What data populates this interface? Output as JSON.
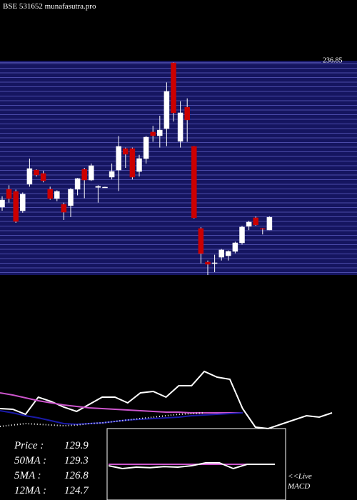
{
  "chart_data": [
    {
      "type": "candlestick",
      "title": "BSE 531652 munafasutra.pro",
      "ylim": [
        90,
        238
      ],
      "yticks": [
        236.85
      ],
      "up_color": "#ffffff",
      "down_color": "#cc0000",
      "panel_color": "#151560",
      "grid_color": "#4a4aa8",
      "open": [
        136.9,
        149.2,
        147.7,
        134.4,
        152.7,
        162.5,
        160.1,
        149.2,
        142.8,
        138.8,
        137.9,
        149.2,
        163.0,
        155.6,
        150.5,
        150.7,
        157.6,
        162.5,
        177.3,
        177.3,
        161.5,
        170.4,
        188.7,
        186.2,
        191.1,
        236.5,
        182.3,
        205.9,
        178.8,
        122.1,
        98.9,
        98.4,
        102.3,
        103.3,
        106.3,
        112.2,
        123.6,
        129.5,
        122.1,
        121.1
      ],
      "high": [
        144.3,
        152,
        149,
        147,
        170.4,
        163,
        162,
        151,
        148.5,
        140,
        150,
        157,
        164,
        167,
        152,
        151,
        167,
        186,
        178,
        178,
        173,
        186,
        193,
        200,
        223,
        236.85,
        210,
        212,
        179,
        123,
        100,
        104,
        108,
        107,
        113,
        124,
        127.5,
        130.5,
        122.5,
        130.5
      ],
      "low": [
        134.4,
        140,
        126,
        133,
        151,
        158,
        154,
        142,
        141,
        128,
        130,
        145,
        143,
        155,
        140,
        150.4,
        156,
        148,
        164,
        156,
        158,
        167,
        182,
        178,
        179,
        196,
        178,
        182,
        129,
        98,
        90,
        92,
        100,
        100,
        105,
        111,
        121,
        124,
        118,
        121
      ],
      "close": [
        141.8,
        142.8,
        127.0,
        145.8,
        163.5,
        159.1,
        155.1,
        142.8,
        147.7,
        133.4,
        149.2,
        156.6,
        155.6,
        165.5,
        151.2,
        150.7,
        161.5,
        178.8,
        173.4,
        157.6,
        170.4,
        185.2,
        186.2,
        190.1,
        216.8,
        202.0,
        202.0,
        197.1,
        129.5,
        104.8,
        97.4,
        98.4,
        107.3,
        106.3,
        112.2,
        123.1,
        126.5,
        124.6,
        121.6,
        129.9
      ],
      "stats": [
        {
          "label": "Price  :",
          "value": 129.9
        },
        {
          "label": "50MA :",
          "value": 129.3
        },
        {
          "label": "5MA :",
          "value": 126.8
        },
        {
          "label": "12MA :",
          "value": 124.7
        }
      ]
    },
    {
      "type": "line",
      "ylim": [
        0,
        100
      ],
      "series": [
        {
          "color": "#ffffff",
          "style": "solid",
          "values": [
            28,
            27,
            20,
            44,
            38,
            30,
            24,
            34,
            44,
            44,
            36,
            50,
            52,
            44,
            60,
            60,
            80,
            72,
            69,
            28,
            2,
            0,
            6,
            12,
            18,
            16,
            22
          ]
        },
        {
          "color": "#cc55cc",
          "style": "solid",
          "values": [
            50,
            47,
            43,
            39,
            36,
            33,
            31,
            29,
            28,
            27,
            26,
            25,
            24,
            23,
            23,
            22,
            22,
            22,
            22,
            22
          ]
        },
        {
          "color": "#1a1aa8",
          "style": "solid",
          "values": [
            25,
            22,
            18,
            15,
            11,
            7,
            6,
            7,
            8,
            10,
            12,
            13,
            14,
            15,
            16,
            18,
            19,
            20,
            21,
            22
          ]
        },
        {
          "color": "#ffffff",
          "style": "dotted",
          "values": [
            3,
            5,
            7,
            6,
            5,
            4,
            5,
            7,
            8,
            10,
            12,
            14,
            16,
            18,
            20,
            21,
            22
          ]
        }
      ]
    },
    {
      "type": "line",
      "title": "MACD",
      "link": "<<Live",
      "ylim": [
        -10,
        10
      ],
      "series": [
        {
          "color": "#cc55cc",
          "style": "solid",
          "values": [
            0,
            0,
            0,
            0,
            0,
            0,
            0,
            0,
            0,
            0,
            0,
            0,
            0
          ]
        },
        {
          "color": "#ffffff",
          "style": "solid",
          "values": [
            -0.5,
            -1.5,
            -1,
            -1.2,
            -0.8,
            -1,
            -0.5,
            0.5,
            0.5,
            -1.5,
            0,
            0,
            0
          ]
        }
      ]
    }
  ]
}
